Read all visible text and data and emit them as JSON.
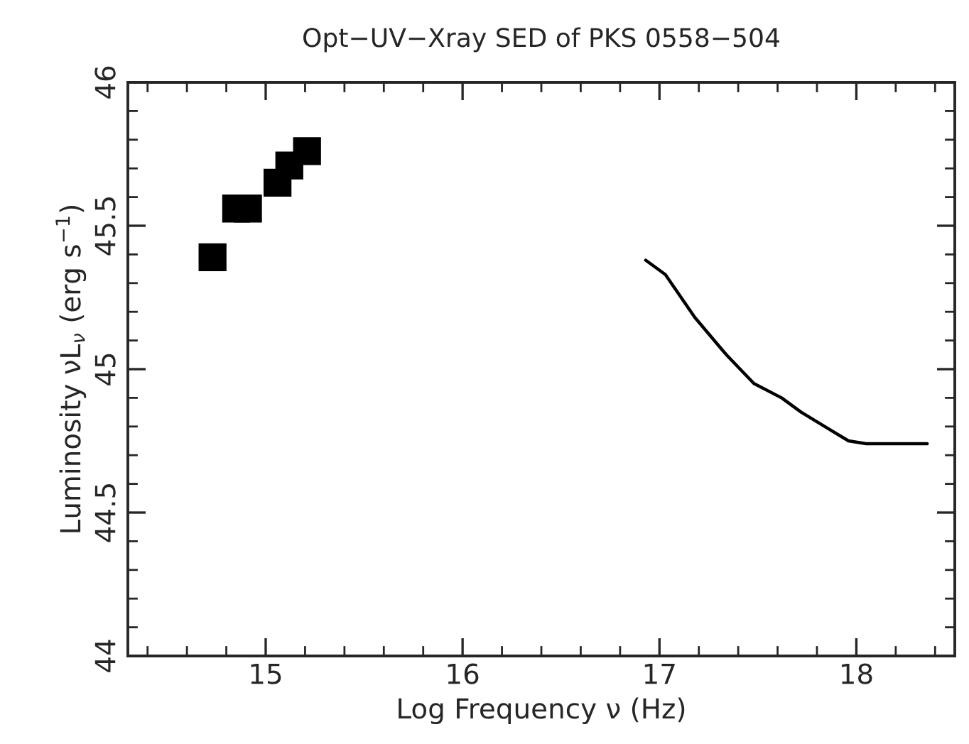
{
  "chart_data": {
    "type": "scatter",
    "title": "Opt−UV−Xray SED of PKS 0558−504",
    "xlabel": "Log Frequency ν (Hz)",
    "ylabel": "Luminosity νL$_{ν}$ (erg s$^{−1}$)",
    "xlim": [
      14.3,
      18.5
    ],
    "xticks": [
      15,
      16,
      17,
      18
    ],
    "ylim": [
      44,
      46
    ],
    "yticks": [
      44,
      {
        "value": 44.5,
        "label": "44.5"
      },
      45,
      {
        "value": 45.5,
        "label": "45.5"
      },
      46
    ],
    "grid": false,
    "legend": false,
    "series": [
      {
        "marker": "square",
        "color": "#000000",
        "x": [
          14.73,
          14.85,
          14.91,
          15.06,
          15.12,
          15.21
        ],
        "values": [
          45.39,
          45.56,
          45.56,
          45.65,
          45.71,
          45.76
        ]
      },
      {
        "type": "line",
        "marker": "none",
        "line_style": "solid",
        "color": "#000000",
        "x": [
          16.93,
          17.03,
          17.18,
          17.34,
          17.48,
          17.62,
          17.72,
          17.84,
          17.96,
          18.05,
          18.22,
          18.36
        ],
        "values": [
          45.38,
          45.33,
          45.18,
          45.05,
          44.95,
          44.9,
          44.85,
          44.8,
          44.75,
          44.74,
          44.74,
          44.74
        ]
      }
    ]
  }
}
